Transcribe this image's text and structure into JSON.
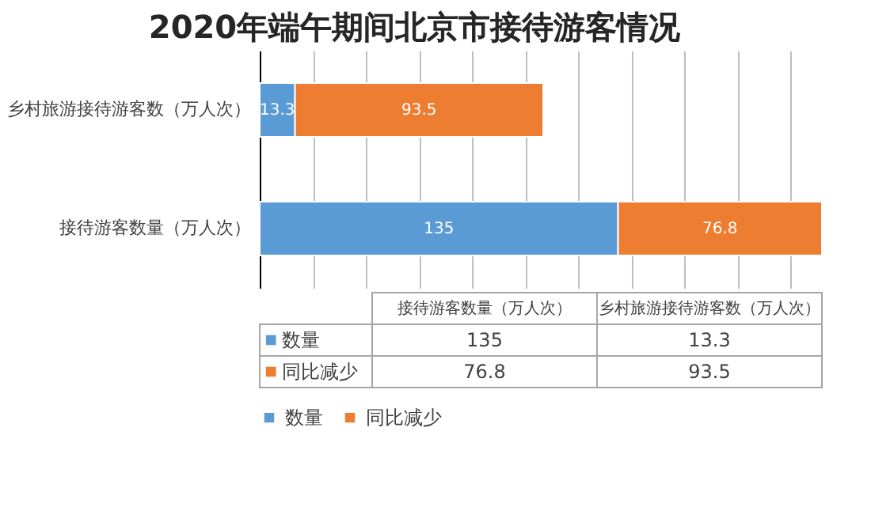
{
  "chart_data": {
    "type": "bar",
    "title": "2020年端午期间北京市接待游客情况",
    "orientation": "horizontal",
    "stacked": true,
    "grid": "x",
    "legend": "bottom",
    "tick_labels": "y",
    "xlim": [
      0,
      211.8
    ],
    "categories": [
      "乡村旅游接待游客数（万人次）",
      "接待游客数量（万人次）"
    ],
    "series": [
      {
        "name": "数量",
        "color": "#5b9bd5",
        "values": [
          13.3,
          135
        ],
        "value_labels": [
          "13.3",
          "135"
        ]
      },
      {
        "name": "同比减少",
        "color": "#ed7d31",
        "values": [
          93.5,
          76.8
        ],
        "value_labels": [
          "93.5",
          "76.8"
        ]
      }
    ]
  }
}
